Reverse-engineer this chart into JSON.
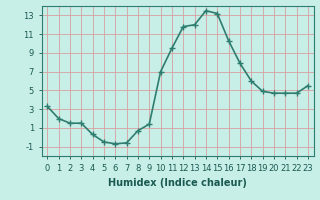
{
  "x": [
    0,
    1,
    2,
    3,
    4,
    5,
    6,
    7,
    8,
    9,
    10,
    11,
    12,
    13,
    14,
    15,
    16,
    17,
    18,
    19,
    20,
    21,
    22,
    23
  ],
  "y": [
    3.3,
    2.0,
    1.5,
    1.5,
    0.3,
    -0.5,
    -0.7,
    -0.6,
    0.7,
    1.4,
    7.0,
    9.5,
    11.8,
    12.0,
    13.5,
    13.2,
    10.3,
    7.9,
    6.0,
    4.9,
    4.7,
    4.7,
    4.7,
    5.5
  ],
  "line_color": "#2e7d6e",
  "marker": "+",
  "marker_size": 4,
  "line_width": 1.2,
  "bg_color": "#c8eee8",
  "grid_color": "#d8a0a0",
  "xlabel": "Humidex (Indice chaleur)",
  "xlabel_fontsize": 7,
  "tick_fontsize": 6,
  "ylim": [
    -2,
    14
  ],
  "xlim": [
    -0.5,
    23.5
  ],
  "yticks": [
    -1,
    1,
    3,
    5,
    7,
    9,
    11,
    13
  ],
  "xticks": [
    0,
    1,
    2,
    3,
    4,
    5,
    6,
    7,
    8,
    9,
    10,
    11,
    12,
    13,
    14,
    15,
    16,
    17,
    18,
    19,
    20,
    21,
    22,
    23
  ]
}
